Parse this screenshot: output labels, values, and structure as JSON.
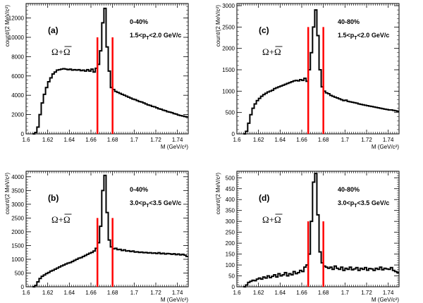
{
  "chart_data": [
    {
      "type": "line",
      "panel_label": "(a)",
      "particle_label": "Ω+Ω",
      "annotation_lines": [
        "0-40%",
        "1.5<p_T<2.0 GeV/c"
      ],
      "xlabel": "M (GeV/c²)",
      "ylabel": "count/(2 MeV/c²)",
      "xlim": [
        1.6,
        1.75
      ],
      "ylim": [
        0,
        13500
      ],
      "x_ticks": [
        "1.6",
        "1.62",
        "1.64",
        "1.66",
        "1.68",
        "1.7",
        "1.72",
        "1.74"
      ],
      "y_ticks": [
        "0",
        "2000",
        "4000",
        "6000",
        "8000",
        "10000",
        "12000"
      ],
      "mass_window": [
        1.666,
        1.68
      ],
      "marker_height": 10000,
      "x": [
        1.609,
        1.611,
        1.613,
        1.615,
        1.617,
        1.619,
        1.621,
        1.623,
        1.625,
        1.627,
        1.629,
        1.631,
        1.633,
        1.635,
        1.637,
        1.639,
        1.641,
        1.643,
        1.645,
        1.647,
        1.649,
        1.651,
        1.653,
        1.655,
        1.657,
        1.659,
        1.661,
        1.663,
        1.665,
        1.667,
        1.669,
        1.671,
        1.673,
        1.675,
        1.677,
        1.679,
        1.681,
        1.683,
        1.685,
        1.687,
        1.689,
        1.691,
        1.693,
        1.695,
        1.697,
        1.699,
        1.701,
        1.703,
        1.705,
        1.707,
        1.709,
        1.711,
        1.713,
        1.715,
        1.717,
        1.719,
        1.721,
        1.723,
        1.725,
        1.727,
        1.729,
        1.731,
        1.733,
        1.735,
        1.737,
        1.739,
        1.741,
        1.743,
        1.745,
        1.747,
        1.749
      ],
      "y": [
        150,
        700,
        2000,
        3200,
        4100,
        4800,
        5400,
        5800,
        6200,
        6400,
        6600,
        6650,
        6700,
        6750,
        6700,
        6650,
        6700,
        6600,
        6650,
        6600,
        6650,
        6550,
        6600,
        6500,
        6650,
        6500,
        6700,
        6400,
        6800,
        7200,
        8600,
        11500,
        13000,
        9000,
        6500,
        4800,
        4600,
        4400,
        4300,
        4200,
        4100,
        4000,
        3900,
        3800,
        3700,
        3600,
        3550,
        3450,
        3350,
        3300,
        3200,
        3100,
        3000,
        2950,
        2850,
        2800,
        2700,
        2600,
        2550,
        2450,
        2400,
        2300,
        2250,
        2200,
        2100,
        2050,
        1950,
        1900,
        1850,
        1800,
        1750
      ]
    },
    {
      "type": "line",
      "panel_label": "(c)",
      "particle_label": "Ω+Ω",
      "annotation_lines": [
        "40-80%",
        "1.5<p_T<2.0 GeV/c"
      ],
      "xlabel": "M (GeV/c²)",
      "ylabel": "count/(2 MeV/c²)",
      "xlim": [
        1.6,
        1.75
      ],
      "ylim": [
        0,
        3050
      ],
      "x_ticks": [
        "1.6",
        "1.62",
        "1.64",
        "1.66",
        "1.68",
        "1.7",
        "1.72",
        "1.74"
      ],
      "y_ticks": [
        "0",
        "500",
        "1000",
        "1500",
        "2000",
        "2500",
        "3000"
      ],
      "mass_window": [
        1.666,
        1.68
      ],
      "marker_height": 2500,
      "x": [
        1.609,
        1.611,
        1.613,
        1.615,
        1.617,
        1.619,
        1.621,
        1.623,
        1.625,
        1.627,
        1.629,
        1.631,
        1.633,
        1.635,
        1.637,
        1.639,
        1.641,
        1.643,
        1.645,
        1.647,
        1.649,
        1.651,
        1.653,
        1.655,
        1.657,
        1.659,
        1.661,
        1.663,
        1.665,
        1.667,
        1.669,
        1.671,
        1.673,
        1.675,
        1.677,
        1.679,
        1.681,
        1.683,
        1.685,
        1.687,
        1.689,
        1.691,
        1.693,
        1.695,
        1.697,
        1.699,
        1.701,
        1.703,
        1.705,
        1.707,
        1.709,
        1.711,
        1.713,
        1.715,
        1.717,
        1.719,
        1.721,
        1.723,
        1.725,
        1.727,
        1.729,
        1.731,
        1.733,
        1.735,
        1.737,
        1.739,
        1.741,
        1.743,
        1.745,
        1.747,
        1.749
      ],
      "y": [
        60,
        250,
        450,
        600,
        700,
        780,
        830,
        880,
        920,
        950,
        980,
        1000,
        1020,
        1060,
        1080,
        1100,
        1120,
        1140,
        1160,
        1180,
        1200,
        1220,
        1240,
        1250,
        1240,
        1270,
        1250,
        1300,
        1230,
        1500,
        1900,
        2500,
        2900,
        2300,
        1500,
        1100,
        1000,
        960,
        940,
        900,
        880,
        860,
        840,
        820,
        800,
        780,
        790,
        760,
        750,
        740,
        730,
        720,
        700,
        690,
        680,
        670,
        660,
        650,
        640,
        630,
        620,
        610,
        600,
        590,
        580,
        570,
        560,
        560,
        550,
        540,
        530
      ]
    },
    {
      "type": "line",
      "panel_label": "(b)",
      "particle_label": "Ω+Ω",
      "annotation_lines": [
        "0-40%",
        "3.0<p_T<3.5 GeV/c"
      ],
      "xlabel": "M (GeV/c²)",
      "ylabel": "count/(2 MeV/c²)",
      "xlim": [
        1.6,
        1.75
      ],
      "ylim": [
        0,
        4200
      ],
      "x_ticks": [
        "1.6",
        "1.62",
        "1.64",
        "1.66",
        "1.68",
        "1.7",
        "1.72",
        "1.74"
      ],
      "y_ticks": [
        "0",
        "500",
        "1000",
        "1500",
        "2000",
        "2500",
        "3000",
        "3500",
        "4000"
      ],
      "mass_window": [
        1.666,
        1.68
      ],
      "marker_height": 2500,
      "x": [
        1.609,
        1.611,
        1.613,
        1.615,
        1.617,
        1.619,
        1.621,
        1.623,
        1.625,
        1.627,
        1.629,
        1.631,
        1.633,
        1.635,
        1.637,
        1.639,
        1.641,
        1.643,
        1.645,
        1.647,
        1.649,
        1.651,
        1.653,
        1.655,
        1.657,
        1.659,
        1.661,
        1.663,
        1.665,
        1.667,
        1.669,
        1.671,
        1.673,
        1.675,
        1.677,
        1.679,
        1.681,
        1.683,
        1.685,
        1.687,
        1.689,
        1.691,
        1.693,
        1.695,
        1.697,
        1.699,
        1.701,
        1.703,
        1.705,
        1.707,
        1.709,
        1.711,
        1.713,
        1.715,
        1.717,
        1.719,
        1.721,
        1.723,
        1.725,
        1.727,
        1.729,
        1.731,
        1.733,
        1.735,
        1.737,
        1.739,
        1.741,
        1.743,
        1.745,
        1.747,
        1.749
      ],
      "y": [
        50,
        180,
        300,
        380,
        430,
        480,
        520,
        570,
        600,
        640,
        680,
        720,
        760,
        790,
        830,
        860,
        880,
        920,
        960,
        1000,
        1040,
        1060,
        1100,
        1140,
        1180,
        1220,
        1250,
        1300,
        1400,
        1600,
        2200,
        3500,
        4050,
        2700,
        1700,
        1450,
        1380,
        1400,
        1350,
        1360,
        1320,
        1340,
        1300,
        1310,
        1280,
        1300,
        1260,
        1270,
        1250,
        1260,
        1240,
        1250,
        1230,
        1240,
        1220,
        1230,
        1210,
        1240,
        1200,
        1220,
        1190,
        1210,
        1200,
        1180,
        1200,
        1170,
        1190,
        1160,
        1180,
        1150,
        1100
      ]
    },
    {
      "type": "line",
      "panel_label": "(d)",
      "particle_label": "Ω+Ω",
      "annotation_lines": [
        "40-80%",
        "3.0<p_T<3.5 GeV/c"
      ],
      "xlabel": "M (GeV/c²)",
      "ylabel": "count/(2 MeV/c²)",
      "xlim": [
        1.6,
        1.75
      ],
      "ylim": [
        0,
        530
      ],
      "x_ticks": [
        "1.6",
        "1.62",
        "1.64",
        "1.66",
        "1.68",
        "1.7",
        "1.72",
        "1.74"
      ],
      "y_ticks": [
        "0",
        "50",
        "100",
        "150",
        "200",
        "250",
        "300",
        "350",
        "400",
        "450",
        "500"
      ],
      "mass_window": [
        1.666,
        1.68
      ],
      "marker_height": 300,
      "x": [
        1.609,
        1.611,
        1.613,
        1.615,
        1.617,
        1.619,
        1.621,
        1.623,
        1.625,
        1.627,
        1.629,
        1.631,
        1.633,
        1.635,
        1.637,
        1.639,
        1.641,
        1.643,
        1.645,
        1.647,
        1.649,
        1.651,
        1.653,
        1.655,
        1.657,
        1.659,
        1.661,
        1.663,
        1.665,
        1.667,
        1.669,
        1.671,
        1.673,
        1.675,
        1.677,
        1.679,
        1.681,
        1.683,
        1.685,
        1.687,
        1.689,
        1.691,
        1.693,
        1.695,
        1.697,
        1.699,
        1.701,
        1.703,
        1.705,
        1.707,
        1.709,
        1.711,
        1.713,
        1.715,
        1.717,
        1.719,
        1.721,
        1.723,
        1.725,
        1.727,
        1.729,
        1.731,
        1.733,
        1.735,
        1.737,
        1.739,
        1.741,
        1.743,
        1.745,
        1.747,
        1.749
      ],
      "y": [
        8,
        20,
        25,
        30,
        28,
        35,
        40,
        35,
        45,
        40,
        50,
        42,
        48,
        55,
        45,
        60,
        50,
        55,
        65,
        50,
        60,
        55,
        70,
        60,
        65,
        75,
        70,
        90,
        100,
        150,
        300,
        480,
        520,
        330,
        160,
        110,
        95,
        90,
        85,
        90,
        80,
        95,
        85,
        80,
        90,
        75,
        85,
        80,
        90,
        78,
        82,
        88,
        75,
        85,
        80,
        88,
        76,
        84,
        82,
        75,
        85,
        80,
        90,
        78,
        85,
        82,
        80,
        88,
        75,
        70,
        65
      ]
    }
  ]
}
